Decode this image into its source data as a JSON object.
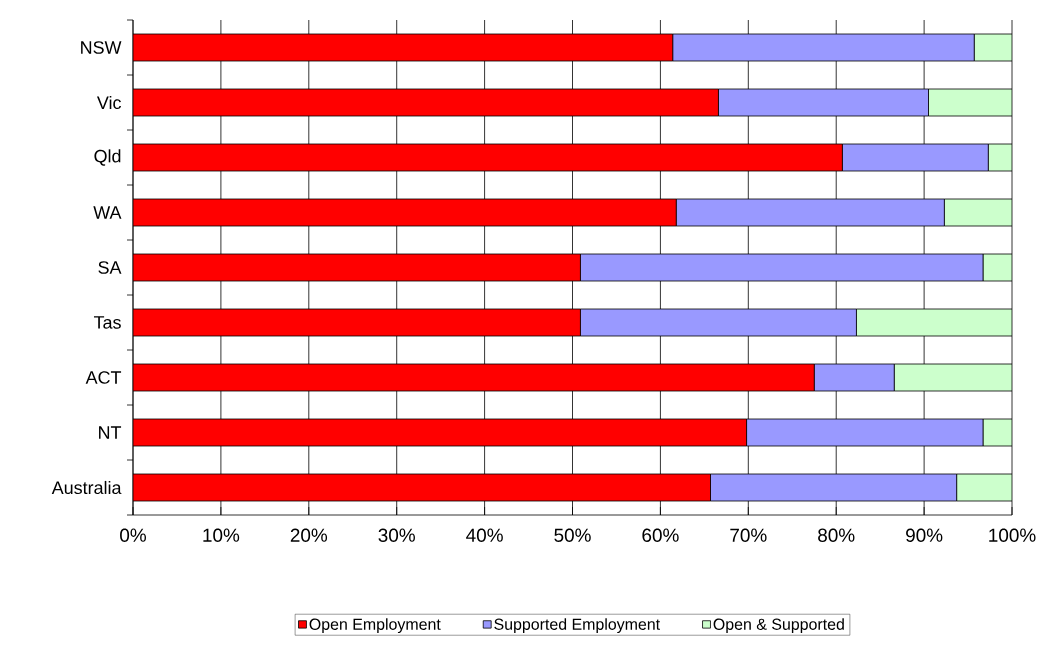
{
  "chart_data": {
    "type": "bar",
    "orientation": "horizontal",
    "stacked": true,
    "categories": [
      "NSW",
      "Vic",
      "Qld",
      "WA",
      "SA",
      "Tas",
      "ACT",
      "NT",
      "Australia"
    ],
    "series": [
      {
        "name": "Open Employment",
        "color": "#ff0000",
        "values": [
          61.4,
          66.6,
          80.7,
          61.8,
          50.9,
          50.9,
          77.5,
          69.8,
          65.7
        ]
      },
      {
        "name": "Supported Employment",
        "color": "#9999ff",
        "values": [
          34.3,
          23.9,
          16.6,
          30.5,
          45.8,
          31.4,
          9.1,
          26.9,
          28.0
        ]
      },
      {
        "name": "Open & Supported",
        "color": "#ccffcc",
        "values": [
          4.3,
          9.5,
          2.7,
          7.7,
          3.3,
          17.7,
          13.4,
          3.3,
          6.3
        ]
      }
    ],
    "xlim": [
      0,
      100
    ],
    "xticks": [
      {
        "value": 0,
        "label": "0%"
      },
      {
        "value": 10,
        "label": "10%"
      },
      {
        "value": 20,
        "label": "20%"
      },
      {
        "value": 30,
        "label": "30%"
      },
      {
        "value": 40,
        "label": "40%"
      },
      {
        "value": 50,
        "label": "50%"
      },
      {
        "value": 60,
        "label": "60%"
      },
      {
        "value": 70,
        "label": "70%"
      },
      {
        "value": 80,
        "label": "80%"
      },
      {
        "value": 90,
        "label": "90%"
      },
      {
        "value": 100,
        "label": "100%"
      }
    ],
    "grid": "x",
    "legend": "bottom"
  }
}
